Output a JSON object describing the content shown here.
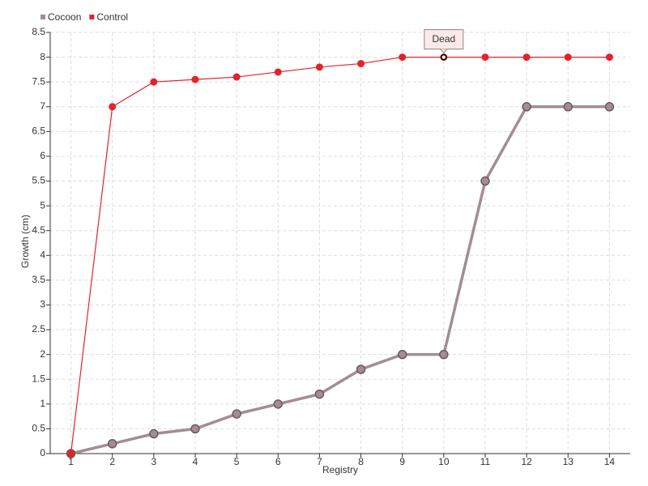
{
  "chart_data": {
    "type": "line",
    "x_label": "Registry",
    "y_label": "Growth (cm)",
    "categories": [
      "1",
      "2",
      "3",
      "4",
      "5",
      "6",
      "7",
      "8",
      "9",
      "10",
      "11",
      "12",
      "13",
      "14"
    ],
    "series": [
      {
        "name": "Cocoon",
        "color": "#a38d93",
        "values": [
          0,
          0.2,
          0.4,
          0.5,
          0.8,
          1,
          1.2,
          1.7,
          2,
          2,
          5.5,
          7,
          7,
          7
        ]
      },
      {
        "name": "Control",
        "color": "#e3232c",
        "values": [
          0,
          7,
          7.5,
          7.55,
          7.6,
          7.7,
          7.8,
          7.87,
          8,
          8,
          8,
          8,
          8,
          8
        ]
      }
    ],
    "ylim": [
      0,
      8.5
    ],
    "yticks": [
      0,
      0.5,
      1,
      1.5,
      2,
      2.5,
      3,
      3.5,
      4,
      4.5,
      5,
      5.5,
      6,
      6.5,
      7,
      7.5,
      8,
      8.5
    ],
    "grid": true,
    "annotations": [
      {
        "text": "Dead",
        "series": "Control",
        "x": "10"
      }
    ]
  }
}
